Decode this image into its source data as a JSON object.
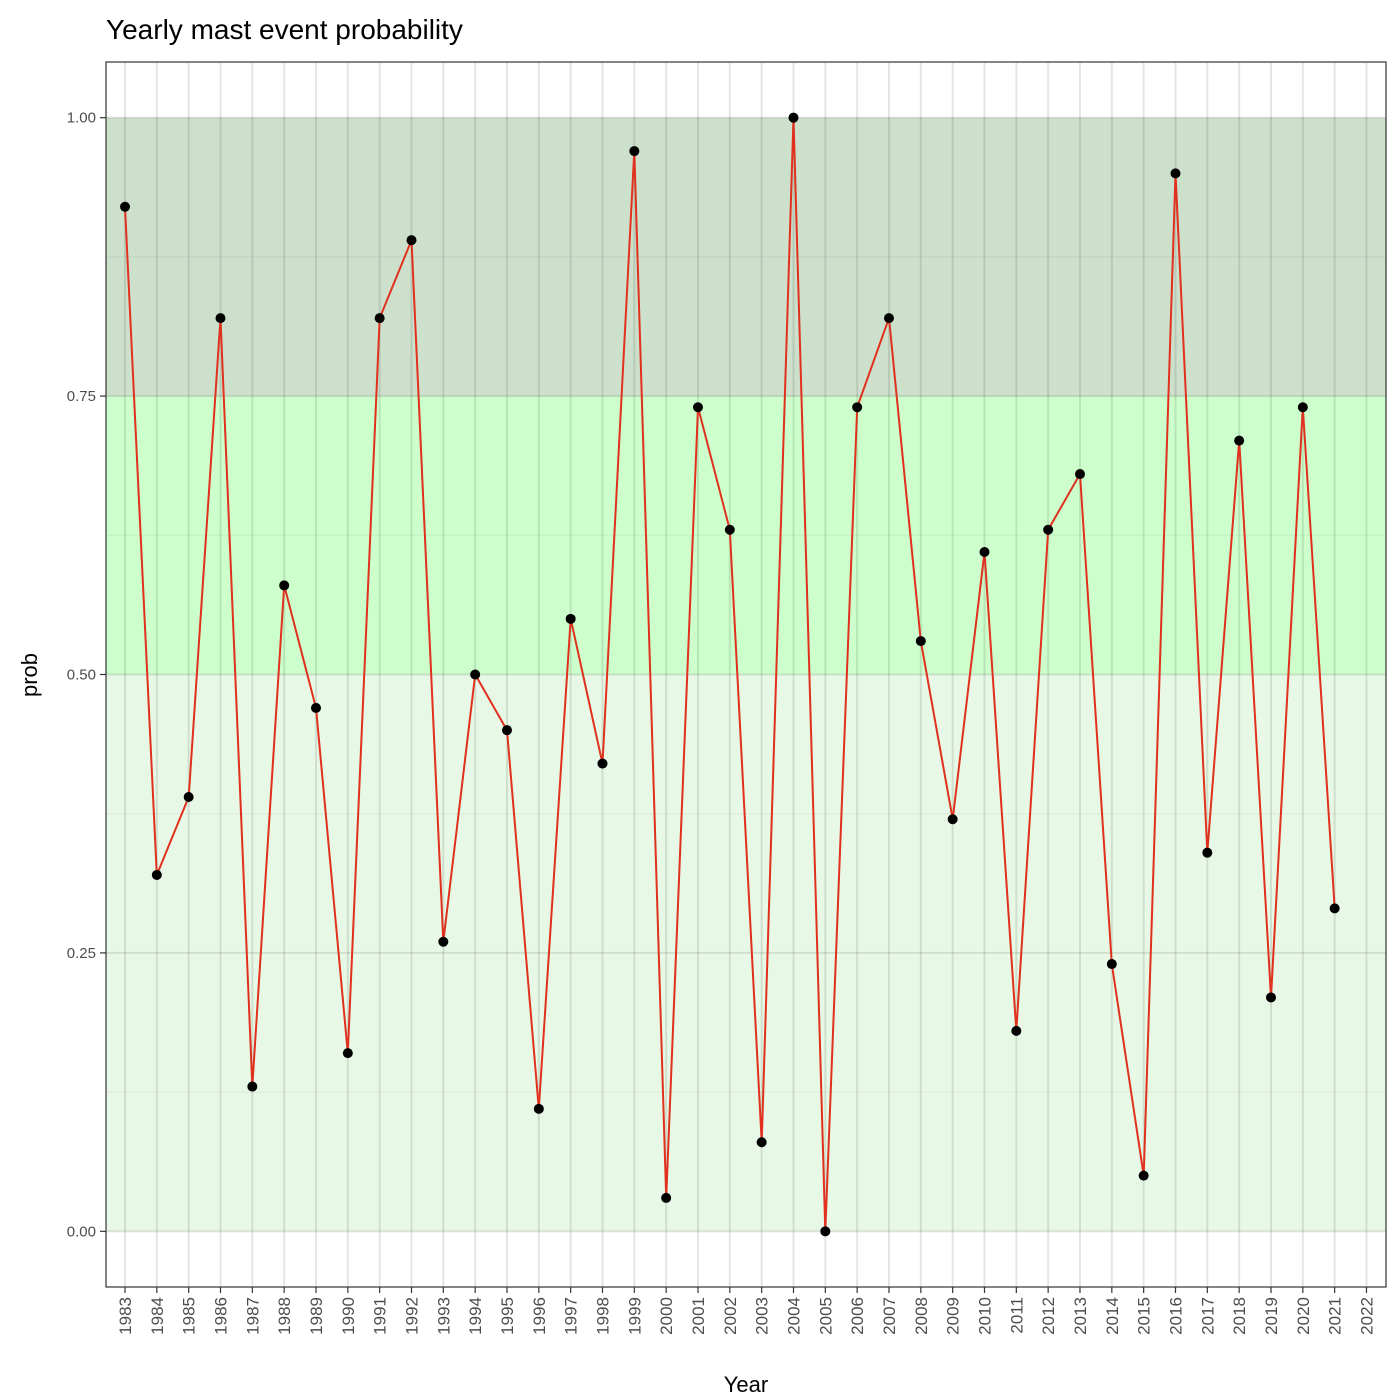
{
  "chart_data": {
    "type": "line",
    "title": "Yearly mast event probability",
    "xlabel": "Year",
    "ylabel": "prob",
    "ylim": [
      -0.05,
      1.05
    ],
    "y_ticks": [
      "0.00",
      "0.25",
      "0.50",
      "0.75",
      "1.00"
    ],
    "y_tick_values": [
      0,
      0.25,
      0.5,
      0.75,
      1.0
    ],
    "x_ticks": [
      "1983",
      "1984",
      "1985",
      "1986",
      "1987",
      "1988",
      "1989",
      "1990",
      "1991",
      "1992",
      "1993",
      "1994",
      "1995",
      "1996",
      "1997",
      "1998",
      "1999",
      "2000",
      "2001",
      "2002",
      "2003",
      "2004",
      "2005",
      "2006",
      "2007",
      "2008",
      "2009",
      "2010",
      "2011",
      "2012",
      "2013",
      "2014",
      "2015",
      "2016",
      "2017",
      "2018",
      "2019",
      "2020",
      "2021",
      "2022"
    ],
    "grid": true,
    "bands": [
      {
        "from": 0.0,
        "to": 0.5,
        "color": "#e8f8e6"
      },
      {
        "from": 0.5,
        "to": 0.75,
        "color": "#ccffcc"
      },
      {
        "from": 0.75,
        "to": 1.0,
        "color": "#cde0cc"
      }
    ],
    "line_color": "#e0301e",
    "point_color": "#000000",
    "series": [
      {
        "x": [
          1983,
          1984,
          1985,
          1986,
          1987,
          1988,
          1989,
          1990,
          1991,
          1992,
          1993,
          1994,
          1995,
          1996,
          1997,
          1998,
          1999,
          2000,
          2001,
          2002,
          2003,
          2004,
          2005,
          2006,
          2007,
          2008,
          2009,
          2010,
          2011,
          2012,
          2013,
          2014,
          2015,
          2016,
          2017,
          2018,
          2019,
          2020,
          2021
        ],
        "values": [
          0.92,
          0.32,
          0.39,
          0.82,
          0.13,
          0.58,
          0.47,
          0.16,
          0.82,
          0.89,
          0.26,
          0.5,
          0.45,
          0.11,
          0.55,
          0.42,
          0.97,
          0.03,
          0.74,
          0.63,
          0.08,
          1.0,
          0.0,
          0.74,
          0.82,
          0.53,
          0.37,
          0.61,
          0.18,
          0.63,
          0.68,
          0.24,
          0.05,
          0.95,
          0.34,
          0.71,
          0.21,
          0.74,
          0.29
        ]
      }
    ]
  }
}
